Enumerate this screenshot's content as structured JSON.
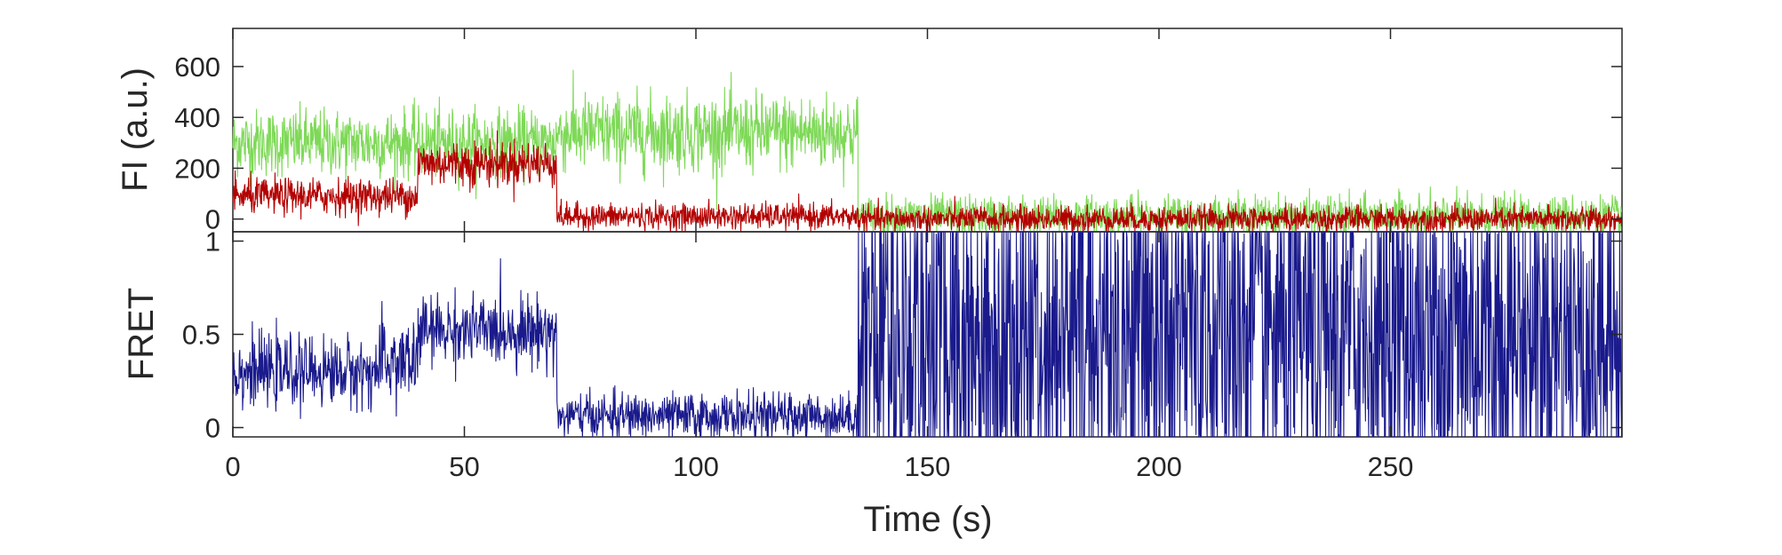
{
  "chart_data": [
    {
      "type": "line",
      "panel": "top",
      "ylabel": "FI (a.u.)",
      "xlabel": "",
      "xlim": [
        0,
        300
      ],
      "ylim": [
        -50,
        750
      ],
      "yticks": [
        0,
        200,
        400,
        600
      ],
      "grid": false,
      "legend": "none",
      "series": [
        {
          "color": "#7ed957",
          "segments": [
            {
              "x0": 0,
              "x1": 70,
              "level": 300,
              "noise": 65
            },
            {
              "x0": 70,
              "x1": 135,
              "level": 340,
              "noise": 75
            },
            {
              "x0": 135,
              "x1": 300,
              "level": 10,
              "noise": 40
            }
          ]
        },
        {
          "color": "#b30000",
          "segments": [
            {
              "x0": 0,
              "x1": 40,
              "level": 90,
              "noise": 35
            },
            {
              "x0": 40,
              "x1": 70,
              "level": 220,
              "noise": 45
            },
            {
              "x0": 70,
              "x1": 135,
              "level": 10,
              "noise": 25
            },
            {
              "x0": 135,
              "x1": 300,
              "level": 0,
              "noise": 25
            }
          ]
        }
      ]
    },
    {
      "type": "line",
      "panel": "bottom",
      "ylabel": "FRET",
      "xlabel": "Time (s)",
      "xlim": [
        0,
        300
      ],
      "ylim": [
        -0.05,
        1.05
      ],
      "yticks": [
        0,
        0.5,
        1
      ],
      "xticks": [
        0,
        50,
        100,
        150,
        200,
        250
      ],
      "grid": false,
      "legend": "none",
      "series": [
        {
          "color": "#1a1a8c",
          "segments": [
            {
              "x0": 0,
              "x1": 32,
              "level": 0.3,
              "noise": 0.09,
              "clip": [
                0,
                1.05
              ]
            },
            {
              "x0": 32,
              "x1": 40,
              "level": 0.35,
              "noise": 0.12,
              "clip": [
                0,
                1.05
              ]
            },
            {
              "x0": 40,
              "x1": 70,
              "level": 0.52,
              "noise": 0.09,
              "clip": [
                0,
                1.05
              ]
            },
            {
              "x0": 70,
              "x1": 135,
              "level": 0.06,
              "noise": 0.06,
              "clip": [
                -0.05,
                1.05
              ]
            },
            {
              "x0": 135,
              "x1": 300,
              "level": 0.5,
              "noise": 0.6,
              "clip": [
                -0.05,
                1.05
              ]
            }
          ]
        }
      ]
    }
  ]
}
